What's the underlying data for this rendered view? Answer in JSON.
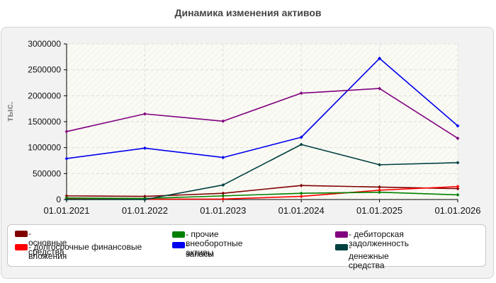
{
  "chart_data": {
    "type": "line",
    "title": "Динамика изменения активов",
    "ylabel": "тыс.",
    "xlabel": "",
    "x": [
      "01.01.2021",
      "01.01.2022",
      "01.01.2023",
      "01.01.2024",
      "01.01.2025",
      "01.01.2026"
    ],
    "ylim": [
      0,
      3000000
    ],
    "yticks": [
      0,
      500000,
      1000000,
      1500000,
      2000000,
      2500000,
      3000000
    ],
    "ytick_labels": [
      "0",
      "500000",
      "1000000",
      "1500000",
      "2000000",
      "2500000",
      "3000000"
    ],
    "grid": true,
    "legend_position": "bottom",
    "series": [
      {
        "name": "основные средства",
        "color": "#800000",
        "values": [
          70000,
          60000,
          120000,
          270000,
          240000,
          210000
        ]
      },
      {
        "name": "долгосрочные финансовые вложения",
        "color": "#ff0000",
        "values": [
          10000,
          5000,
          10000,
          60000,
          180000,
          250000
        ]
      },
      {
        "name": "прочие внеоборотные активы",
        "color": "#008000",
        "values": [
          30000,
          20000,
          70000,
          120000,
          140000,
          90000
        ]
      },
      {
        "name": "запасы",
        "color": "#0000ee",
        "values": [
          790000,
          990000,
          810000,
          1200000,
          2720000,
          1420000
        ]
      },
      {
        "name": "дебиторская задолженность",
        "color": "#800080",
        "values": [
          1310000,
          1650000,
          1510000,
          2050000,
          2140000,
          1180000
        ]
      },
      {
        "name": "денежные средства",
        "color": "#004040",
        "values": [
          0,
          0,
          280000,
          1060000,
          670000,
          710000
        ]
      }
    ]
  }
}
